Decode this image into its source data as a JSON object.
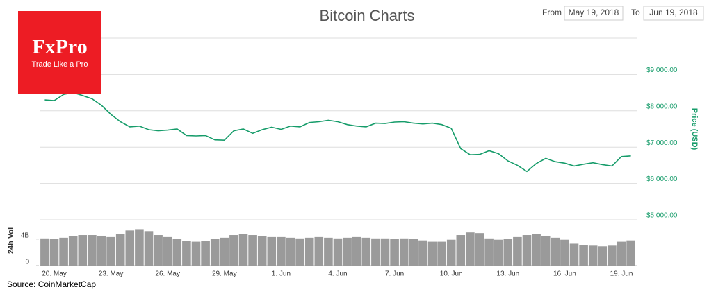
{
  "chart_data": {
    "type": "line",
    "title": "Bitcoin Charts",
    "from_label": "From",
    "from_value": "May 19, 2018",
    "to_label": "To",
    "to_value": "Jun 19, 2018",
    "source": "Source: CoinMarketCap",
    "logo": {
      "name": "FxPro",
      "tagline": "Trade Like a Pro"
    },
    "categories": [
      null,
      "20. May",
      null,
      null,
      null,
      null,
      null,
      "23. May",
      null,
      null,
      null,
      null,
      null,
      "26. May",
      null,
      null,
      null,
      null,
      null,
      "29. May",
      null,
      null,
      null,
      null,
      null,
      "1. Jun",
      null,
      null,
      null,
      null,
      null,
      "4. Jun",
      null,
      null,
      null,
      null,
      null,
      "7. Jun",
      null,
      null,
      null,
      null,
      null,
      "10. Jun",
      null,
      null,
      null,
      null,
      null,
      "13. Jun",
      null,
      null,
      null,
      null,
      null,
      "16. Jun",
      null,
      null,
      null,
      null,
      null,
      "19. Jun",
      null
    ],
    "series": [
      {
        "name": "Price (USD)",
        "type": "line",
        "color": "#169c6a",
        "values": [
          8300,
          8280,
          8450,
          8500,
          8420,
          8330,
          8150,
          7900,
          7700,
          7560,
          7580,
          7480,
          7450,
          7470,
          7500,
          7320,
          7310,
          7320,
          7200,
          7190,
          7450,
          7500,
          7380,
          7480,
          7550,
          7490,
          7580,
          7560,
          7680,
          7700,
          7740,
          7700,
          7620,
          7580,
          7560,
          7660,
          7650,
          7690,
          7700,
          7660,
          7640,
          7660,
          7620,
          7520,
          6960,
          6790,
          6800,
          6900,
          6820,
          6620,
          6500,
          6330,
          6550,
          6690,
          6600,
          6560,
          6480,
          6530,
          6570,
          6520,
          6480,
          6740,
          6760
        ]
      },
      {
        "name": "24h Vol",
        "type": "bar",
        "axis": "y2",
        "color": "#9a9a9a",
        "values": [
          4100000000,
          4000000000,
          4200000000,
          4400000000,
          4600000000,
          4600000000,
          4500000000,
          4300000000,
          4800000000,
          5300000000,
          5500000000,
          5200000000,
          4600000000,
          4300000000,
          4000000000,
          3700000000,
          3600000000,
          3700000000,
          4000000000,
          4200000000,
          4600000000,
          4800000000,
          4600000000,
          4400000000,
          4300000000,
          4300000000,
          4200000000,
          4100000000,
          4200000000,
          4300000000,
          4200000000,
          4100000000,
          4200000000,
          4300000000,
          4200000000,
          4100000000,
          4100000000,
          4000000000,
          4100000000,
          4000000000,
          3800000000,
          3600000000,
          3600000000,
          3900000000,
          4600000000,
          5000000000,
          4900000000,
          4100000000,
          3900000000,
          4000000000,
          4300000000,
          4600000000,
          4800000000,
          4500000000,
          4200000000,
          3900000000,
          3300000000,
          3100000000,
          3000000000,
          2900000000,
          3000000000,
          3600000000,
          3800000000
        ]
      }
    ],
    "ylim": [
      5000,
      10000
    ],
    "yticks": [
      {
        "value": 5000,
        "label": "$5 000.00"
      },
      {
        "value": 6000,
        "label": "$6 000.00"
      },
      {
        "value": 7000,
        "label": "$7 000.00"
      },
      {
        "value": 8000,
        "label": "$8 000.00"
      },
      {
        "value": 9000,
        "label": "$9 000.00"
      }
    ],
    "y2lim": [
      0,
      6800000000
    ],
    "y2ticks": [
      0,
      {
        "value": 4000000000,
        "label": "4B"
      }
    ],
    "grid": true
  }
}
